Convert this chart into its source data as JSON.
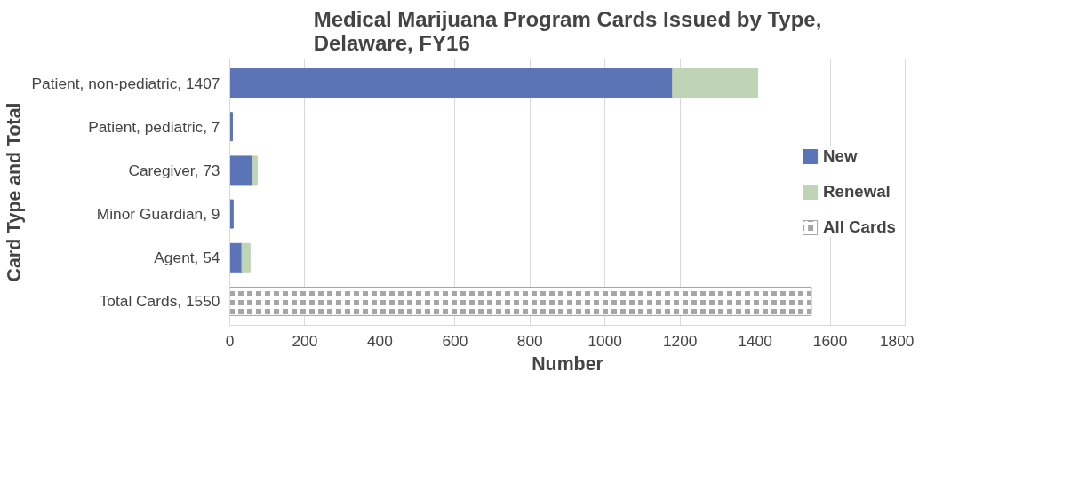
{
  "chart_data": {
    "type": "bar",
    "orientation": "horizontal",
    "stacked": true,
    "title": "Medical Marijuana Program Cards Issued by Type,\nDelaware, FY16",
    "xlabel": "Number",
    "ylabel": "Card Type and Total",
    "categories": [
      "Patient, non-pediatric, 1407",
      "Patient, pediatric, 7",
      "Caregiver, 73",
      "Minor Guardian, 9",
      "Agent, 54",
      "Total Cards, 1550"
    ],
    "series": [
      {
        "name": "New",
        "color": "#5b74b6",
        "values": [
          1180,
          7,
          61,
          9,
          32,
          null
        ]
      },
      {
        "name": "Renewal",
        "color": "#bfd4b4",
        "values": [
          227,
          null,
          12,
          null,
          22,
          null
        ]
      },
      {
        "name": "All Cards",
        "color": "#a6a6a6",
        "values": [
          null,
          null,
          null,
          null,
          null,
          1550
        ]
      }
    ],
    "xlim": [
      0,
      1800
    ],
    "xticks": [
      0,
      200,
      400,
      600,
      800,
      1000,
      1200,
      1400,
      1600,
      1800
    ],
    "grid": "x",
    "legend": "right"
  }
}
